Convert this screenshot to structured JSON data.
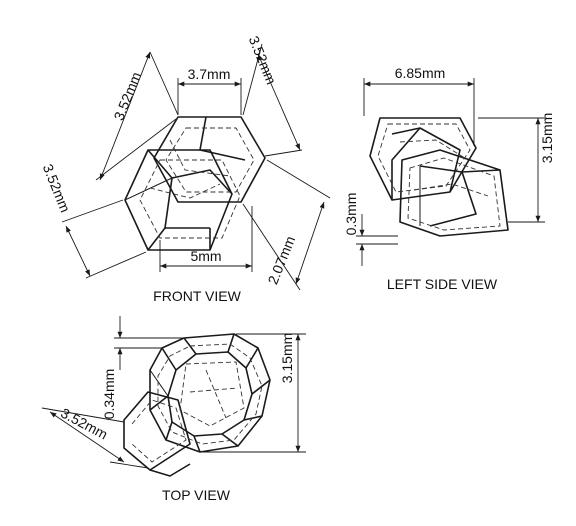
{
  "views": {
    "front": {
      "caption": "FRONT VIEW",
      "dims": {
        "top_width": "3.7mm",
        "top_right_edge": "3.52mm",
        "top_left_edge": "3.52mm",
        "left_edge": "3.52mm",
        "bottom_width": "5mm",
        "right_offset": "2.07mm"
      }
    },
    "left_side": {
      "caption": "LEFT SIDE VIEW",
      "dims": {
        "width": "6.85mm",
        "height": "3.15mm",
        "offset": "0.3mm"
      }
    },
    "top": {
      "caption": "TOP VIEW",
      "dims": {
        "height": "3.15mm",
        "offset": "0.34mm",
        "edge": "3.52mm"
      }
    }
  }
}
